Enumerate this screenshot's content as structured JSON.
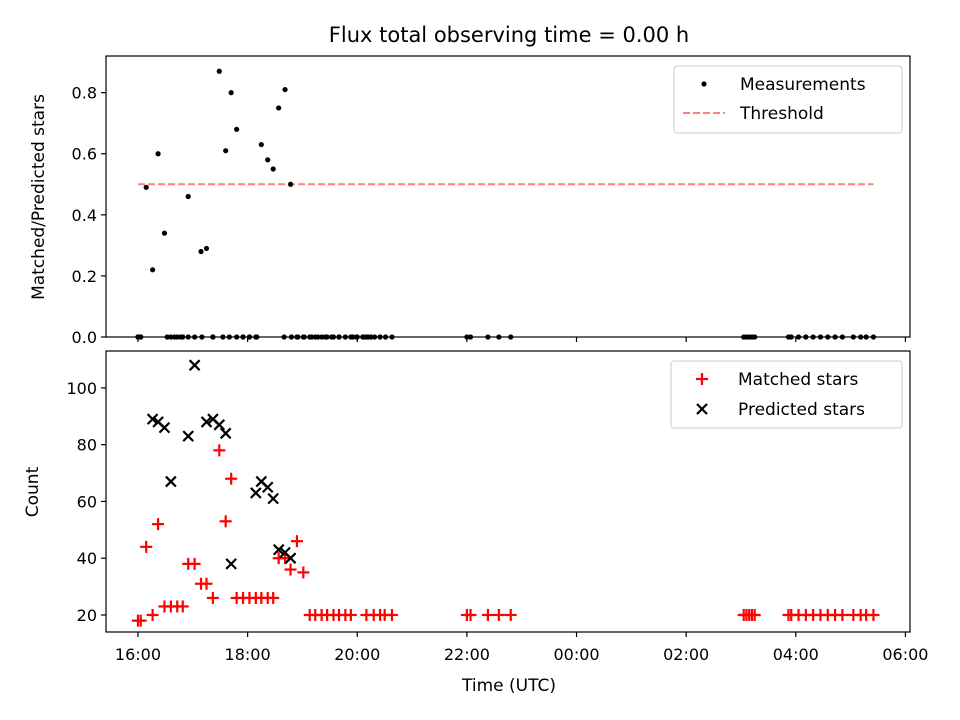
{
  "title": "Flux total observing time = 0.00 h",
  "chart_data": [
    {
      "type": "scatter",
      "ylabel": "Matched/Predicted stars",
      "xlabel": "",
      "xlim": [
        "15:25",
        "30:05"
      ],
      "ylim": [
        0,
        0.92
      ],
      "grid": false,
      "legend_placement": "top-right",
      "yticks": [
        "0.0",
        "0.2",
        "0.4",
        "0.6",
        "0.8"
      ],
      "series": [
        {
          "name": "Measurements",
          "marker": "dot",
          "color": "#000000",
          "x": [
            "16:00",
            "16:03",
            "16:09",
            "16:16",
            "16:22",
            "16:29",
            "16:36",
            "16:43",
            "16:49",
            "16:55",
            "17:02",
            "17:09",
            "17:15",
            "17:22",
            "17:29",
            "17:36",
            "17:42",
            "17:48",
            "17:55",
            "18:02",
            "18:09",
            "18:15",
            "18:22",
            "18:28",
            "18:34",
            "18:41",
            "18:47",
            "18:54",
            "19:01",
            "19:08",
            "19:14",
            "19:21",
            "19:27",
            "19:34",
            "19:40",
            "19:47",
            "19:53",
            "19:59",
            "20:06",
            "20:12",
            "20:19",
            "20:25",
            "20:31",
            "20:38"
          ],
          "y": [
            0.0,
            0.0,
            0.49,
            0.22,
            0.6,
            0.34,
            0.0,
            0.0,
            0.0,
            0.46,
            0.0,
            0.28,
            0.29,
            0.0,
            0.87,
            0.61,
            0.8,
            0.68,
            0.0,
            0.0,
            0.0,
            0.63,
            0.58,
            0.55,
            0.75,
            0.81,
            0.5,
            0.0,
            0.0,
            0.0,
            0.0,
            0.0,
            0.0,
            0.0,
            0.0,
            0.0,
            0.0,
            0.0,
            0.0,
            0.0,
            0.0,
            0.0,
            0.0,
            0.0
          ]
        },
        {
          "name": "Threshold",
          "style": "dashed",
          "color": "#ff8080",
          "x": [
            "16:00",
            "29:25"
          ],
          "y": [
            0.5,
            0.5
          ]
        },
        {
          "name": "",
          "marker": "dot",
          "color": "#000000",
          "x": [
            "16:00",
            "16:03",
            "16:32",
            "16:40",
            "16:47",
            "16:55",
            "17:10",
            "17:22",
            "17:33",
            "17:40",
            "17:48",
            "17:55",
            "18:02",
            "18:10",
            "18:40",
            "18:48",
            "18:55",
            "19:02",
            "19:10",
            "19:17",
            "19:25",
            "19:32",
            "19:40",
            "19:55",
            "20:00",
            "20:07",
            "20:10",
            "20:15",
            "22:00",
            "22:04",
            "22:23",
            "22:35",
            "22:48",
            "27:03",
            "27:06",
            "27:09",
            "27:12",
            "27:15",
            "27:52",
            "27:55",
            "28:03",
            "28:11",
            "28:19",
            "28:27",
            "28:35",
            "28:43",
            "28:51",
            "29:03",
            "29:11",
            "29:17",
            "29:25"
          ],
          "y": [
            0,
            0,
            0,
            0,
            0,
            0,
            0,
            0,
            0,
            0,
            0,
            0,
            0,
            0,
            0,
            0,
            0,
            0,
            0,
            0,
            0,
            0,
            0,
            0,
            0,
            0,
            0,
            0,
            0,
            0,
            0,
            0,
            0,
            0,
            0,
            0,
            0,
            0,
            0,
            0,
            0,
            0,
            0,
            0,
            0,
            0,
            0,
            0,
            0,
            0,
            0
          ]
        }
      ]
    },
    {
      "type": "scatter",
      "ylabel": "Count",
      "xlabel": "Time (UTC)",
      "xlim": [
        "15:25",
        "30:05"
      ],
      "ylim": [
        14,
        113
      ],
      "grid": false,
      "legend_placement": "top-right",
      "yticks": [
        "20",
        "40",
        "60",
        "80",
        "100"
      ],
      "xticks": [
        "16:00",
        "18:00",
        "20:00",
        "22:00",
        "00:00",
        "02:00",
        "04:00",
        "06:00"
      ],
      "series": [
        {
          "name": "Matched stars",
          "marker": "plus",
          "color": "#ff0000",
          "x": [
            "16:00",
            "16:03",
            "16:09",
            "16:16",
            "16:22",
            "16:29",
            "16:36",
            "16:43",
            "16:49",
            "16:55",
            "17:02",
            "17:09",
            "17:15",
            "17:22",
            "17:29",
            "17:36",
            "17:42",
            "17:48",
            "17:55",
            "18:02",
            "18:09",
            "18:15",
            "18:22",
            "18:28",
            "18:34",
            "18:41",
            "18:47",
            "18:54",
            "19:01",
            "19:08",
            "19:14",
            "19:21",
            "19:27",
            "19:34",
            "19:40",
            "19:47",
            "19:53",
            "20:10",
            "20:18",
            "20:25",
            "20:30",
            "20:38",
            "22:00",
            "22:04",
            "22:23",
            "22:35",
            "22:48",
            "27:03",
            "27:06",
            "27:09",
            "27:12",
            "27:15",
            "27:52",
            "27:55",
            "28:03",
            "28:11",
            "28:19",
            "28:27",
            "28:35",
            "28:43",
            "28:51",
            "29:03",
            "29:11",
            "29:17",
            "29:25"
          ],
          "y": [
            18,
            18,
            44,
            20,
            52,
            23,
            23,
            23,
            23,
            38,
            38,
            31,
            31,
            26,
            78,
            53,
            68,
            26,
            26,
            26,
            26,
            26,
            26,
            26,
            40,
            40,
            36,
            46,
            35,
            20,
            20,
            20,
            20,
            20,
            20,
            20,
            20,
            20,
            20,
            20,
            20,
            20,
            20,
            20,
            20,
            20,
            20,
            20,
            20,
            20,
            20,
            20,
            20,
            20,
            20,
            20,
            20,
            20,
            20,
            20,
            20,
            20,
            20,
            20,
            20
          ]
        },
        {
          "name": "Predicted stars",
          "marker": "x",
          "color": "#000000",
          "x": [
            "16:16",
            "16:22",
            "16:29",
            "16:36",
            "16:55",
            "17:02",
            "17:15",
            "17:22",
            "17:29",
            "17:36",
            "17:42",
            "18:09",
            "18:15",
            "18:22",
            "18:28",
            "18:34",
            "18:41",
            "18:47"
          ],
          "y": [
            89,
            88,
            86,
            67,
            83,
            108,
            88,
            89,
            87,
            84,
            38,
            63,
            67,
            65,
            61,
            43,
            42,
            40
          ]
        }
      ]
    }
  ]
}
